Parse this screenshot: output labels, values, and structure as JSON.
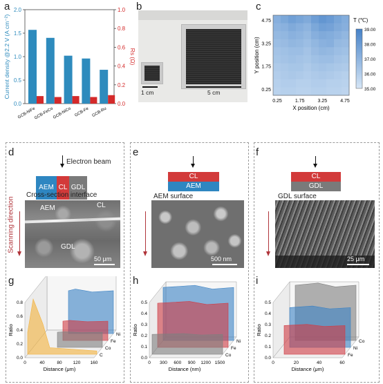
{
  "panel_labels": {
    "a": "a",
    "b": "b",
    "c": "c",
    "d": "d",
    "e": "e",
    "f": "f",
    "g": "g",
    "h": "h",
    "i": "i"
  },
  "chart_data": [
    {
      "type": "bar",
      "panel": "a",
      "categories": [
        "GCB-NiFe",
        "GCB-FeCo",
        "GCB-NiCo",
        "GCB-Fe",
        "GCB-Ru"
      ],
      "series": [
        {
          "name": "Current density",
          "values": [
            1.57,
            1.4,
            1.02,
            0.96,
            0.72
          ],
          "color": "#2e8bbd"
        },
        {
          "name": "Rs",
          "values": [
            0.08,
            0.07,
            0.08,
            0.07,
            0.09
          ],
          "color": "#d42a2a"
        }
      ],
      "ylabel": "Current density @2.2 V (A cm⁻²)",
      "ylabel2": "Rs (Ω)",
      "ylim": [
        0,
        2.0
      ],
      "ylim2": [
        0,
        1.0
      ],
      "yticks": [
        "0.0",
        "0.5",
        "1.0",
        "1.5",
        "2.0"
      ],
      "yticks2": [
        "0.0",
        "0.2",
        "0.4",
        "0.6",
        "0.8",
        "1.0"
      ]
    },
    {
      "type": "heatmap",
      "panel": "c",
      "xlabel": "X position (cm)",
      "ylabel": "Y position (cm)",
      "xticks": [
        "0.25",
        "1.75",
        "3.25",
        "4.75"
      ],
      "yticks": [
        "4.75",
        "3.25",
        "1.75",
        "0.25"
      ],
      "colorbar_title": "T (℃)",
      "colorbar_ticks": [
        "39.00",
        "38.00",
        "37.00",
        "36.00",
        "35.00"
      ],
      "range": [
        35.0,
        39.0
      ],
      "values": [
        [
          37.2,
          37.5,
          37.8,
          37.6,
          37.4,
          37.9,
          38.2,
          38.0,
          37.6,
          37.3
        ],
        [
          37.0,
          37.1,
          37.4,
          37.2,
          37.0,
          37.5,
          37.8,
          37.7,
          37.4,
          37.2
        ],
        [
          36.8,
          36.9,
          37.1,
          37.0,
          36.8,
          37.2,
          37.4,
          37.3,
          37.1,
          36.9
        ],
        [
          36.6,
          36.7,
          36.9,
          36.8,
          36.6,
          36.9,
          37.1,
          37.2,
          36.8,
          36.7
        ],
        [
          36.4,
          36.5,
          36.6,
          36.6,
          36.4,
          36.7,
          36.9,
          36.8,
          36.6,
          36.5
        ],
        [
          36.3,
          36.4,
          36.5,
          36.4,
          36.3,
          36.5,
          36.6,
          36.6,
          36.4,
          36.3
        ],
        [
          36.1,
          36.2,
          36.3,
          36.3,
          36.1,
          36.3,
          36.4,
          36.3,
          36.2,
          36.1
        ],
        [
          36.0,
          36.1,
          36.2,
          36.1,
          36.0,
          36.1,
          36.2,
          36.1,
          36.0,
          35.9
        ],
        [
          35.9,
          36.0,
          36.0,
          35.9,
          35.9,
          36.0,
          36.0,
          35.9,
          35.9,
          35.8
        ],
        [
          35.8,
          35.9,
          35.9,
          35.8,
          35.8,
          35.9,
          35.9,
          35.8,
          35.8,
          35.7
        ]
      ]
    },
    {
      "type": "area",
      "panel": "g",
      "xlabel": "Distance (μm)",
      "ylabel": "Ratio",
      "xticks": [
        "0",
        "40",
        "80",
        "120",
        "160"
      ],
      "yticks": [
        "0.0",
        "0.2",
        "0.4",
        "0.6",
        "0.8"
      ],
      "series": [
        {
          "name": "Ni",
          "color": "#3b82c4",
          "level": 0.62
        },
        {
          "name": "Fe",
          "color": "#d13c45",
          "level": 0.28
        },
        {
          "name": "Co",
          "color": "#7f7f7f",
          "level": 0.22
        },
        {
          "name": "C",
          "color": "#f3b23c",
          "level": 0.8
        }
      ]
    },
    {
      "type": "area",
      "panel": "h",
      "xlabel": "Distance (nm)",
      "ylabel": "Ratio",
      "xticks": [
        "0",
        "300",
        "600",
        "900",
        "1200",
        "1500"
      ],
      "yticks": [
        "0.0",
        "0.1",
        "0.2",
        "0.3",
        "0.4",
        "0.5"
      ],
      "series": [
        {
          "name": "Ni",
          "color": "#3b82c4",
          "level": 0.48
        },
        {
          "name": "Fe",
          "color": "#d13c45",
          "level": 0.4
        },
        {
          "name": "Co",
          "color": "#7f7f7f",
          "level": 0.18
        }
      ]
    },
    {
      "type": "area",
      "panel": "i",
      "xlabel": "Distance (μm)",
      "ylabel": "Ratio",
      "xticks": [
        "0",
        "20",
        "40",
        "60"
      ],
      "yticks": [
        "0.0",
        "0.1",
        "0.2",
        "0.3",
        "0.4",
        "0.5"
      ],
      "series": [
        {
          "name": "Co",
          "color": "#7f7f7f",
          "level": 0.5
        },
        {
          "name": "Ni",
          "color": "#3b82c4",
          "level": 0.36
        },
        {
          "name": "Fe",
          "color": "#d13c45",
          "level": 0.26
        }
      ]
    }
  ],
  "panel_b": {
    "scale_small": "1 cm",
    "scale_large": "5 cm"
  },
  "panel_d": {
    "beam": "Electron beam",
    "layers": [
      "AEM",
      "CL",
      "GDL"
    ],
    "title": "Cross-section interface",
    "sem_labels": {
      "aem": "AEM",
      "cl": "CL",
      "gdl": "GDL"
    },
    "scale": "50 μm",
    "scan": "Scanning direction"
  },
  "panel_e": {
    "layers": [
      "CL",
      "AEM"
    ],
    "title": "AEM surface",
    "scale": "500 nm"
  },
  "panel_f": {
    "layers": [
      "CL",
      "GDL"
    ],
    "title": "GDL surface",
    "scale": "25 μm"
  },
  "colors": {
    "aem": "#2e86c1",
    "cl": "#d23a3a",
    "gdl": "#7a7a7a",
    "arrow": "#b0343a",
    "bar_blue": "#2e8bbd",
    "bar_red": "#d42a2a"
  }
}
